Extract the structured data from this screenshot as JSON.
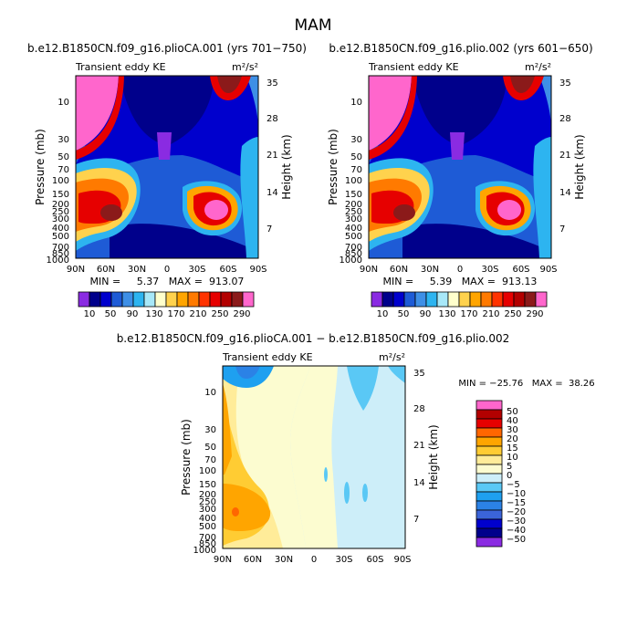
{
  "page_title": "MAM",
  "colors": {
    "palette": [
      "#8a2be2",
      "#00008b",
      "#0000cd",
      "#1e5bd6",
      "#3e8fe6",
      "#2db4f0",
      "#a8e8f8",
      "#ffffcc",
      "#ffd24d",
      "#ffa500",
      "#ff7a00",
      "#ff3300",
      "#e60000",
      "#b30000",
      "#8b1a1a",
      "#ff66cc"
    ],
    "diff_palette": [
      "#8a2be2",
      "#00008b",
      "#0000cd",
      "#3b64d9",
      "#2b82e6",
      "#1ea0f0",
      "#5ac8f5",
      "#cdeef9",
      "#fcfcd0",
      "#ffec99",
      "#ffcc33",
      "#ffa500",
      "#ff6600",
      "#e60000",
      "#b30000",
      "#ff66cc"
    ]
  },
  "chart_data": [
    {
      "type": "heatmap",
      "title": "b.e12.B1850CN.f09_g16.plioCA.001 (yrs 701−750)",
      "left_label": "Transient eddy KE",
      "units": "m²/s²",
      "xlabel": "",
      "ylabel": "Pressure (mb)",
      "y2label": "Height (km)",
      "x_ticks": [
        "90N",
        "60N",
        "30N",
        "0",
        "30S",
        "60S",
        "90S"
      ],
      "y_ticks": [
        "10",
        "30",
        "50",
        "70",
        "100",
        "150",
        "200",
        "250",
        "300",
        "400",
        "500",
        "700",
        "850",
        "1000"
      ],
      "y2_ticks": [
        "35",
        "28",
        "21",
        "14",
        "7"
      ],
      "minmax": "MIN =     5.37   MAX =  913.07",
      "min": 5.37,
      "max": 913.07,
      "colorbar_labels": [
        "10",
        "50",
        "90",
        "130",
        "170",
        "210",
        "250",
        "290"
      ]
    },
    {
      "type": "heatmap",
      "title": "b.e12.B1850CN.f09_g16.plio.002 (yrs 601−650)",
      "left_label": "Transient eddy KE",
      "units": "m²/s²",
      "xlabel": "",
      "ylabel": "Pressure (mb)",
      "y2label": "Height (km)",
      "x_ticks": [
        "90N",
        "60N",
        "30N",
        "0",
        "30S",
        "60S",
        "90S"
      ],
      "y_ticks": [
        "10",
        "30",
        "50",
        "70",
        "100",
        "150",
        "200",
        "250",
        "300",
        "400",
        "500",
        "700",
        "850",
        "1000"
      ],
      "y2_ticks": [
        "35",
        "28",
        "21",
        "14",
        "7"
      ],
      "minmax": "MIN =     5.39   MAX =  913.13",
      "min": 5.39,
      "max": 913.13,
      "colorbar_labels": [
        "10",
        "50",
        "90",
        "130",
        "170",
        "210",
        "250",
        "290"
      ]
    },
    {
      "type": "heatmap",
      "title": "b.e12.B1850CN.f09_g16.plioCA.001 − b.e12.B1850CN.f09_g16.plio.002",
      "left_label": "Transient eddy KE",
      "units": "m²/s²",
      "xlabel": "",
      "ylabel": "Pressure (mb)",
      "y2label": "Height (km)",
      "x_ticks": [
        "90N",
        "60N",
        "30N",
        "0",
        "30S",
        "60S",
        "90S"
      ],
      "y_ticks": [
        "10",
        "30",
        "50",
        "70",
        "100",
        "150",
        "200",
        "250",
        "300",
        "400",
        "500",
        "700",
        "850",
        "1000"
      ],
      "y2_ticks": [
        "35",
        "28",
        "21",
        "14",
        "7"
      ],
      "minmax": "MIN = −25.76   MAX =  38.26",
      "min": -25.76,
      "max": 38.26,
      "colorbar_labels": [
        "50",
        "40",
        "30",
        "20",
        "15",
        "10",
        "5",
        "0",
        "−5",
        "−10",
        "−15",
        "−20",
        "−30",
        "−40",
        "−50"
      ]
    }
  ]
}
